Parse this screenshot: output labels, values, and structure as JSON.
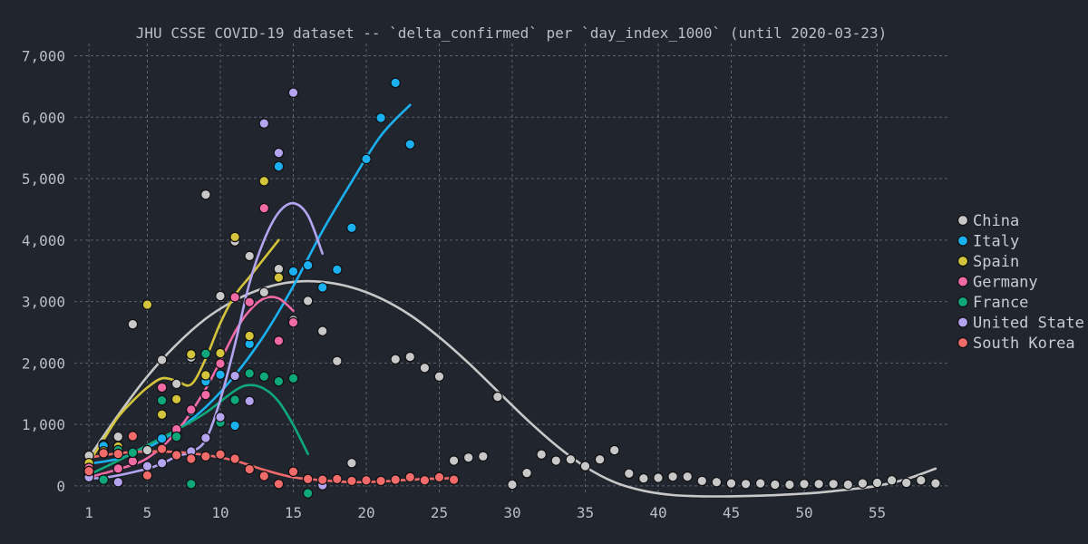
{
  "chart_data": {
    "type": "scatter",
    "title": "JHU CSSE COVID-19 dataset -- `delta_confirmed` per `day_index_1000` (until 2020-03-23)",
    "xlabel": "",
    "ylabel": "",
    "xlim": [
      0,
      60
    ],
    "ylim": [
      -150,
      7200
    ],
    "x_ticks": [
      1,
      5,
      10,
      15,
      20,
      25,
      30,
      35,
      40,
      45,
      50,
      55
    ],
    "x_tick_labels": [
      "1",
      "5",
      "10",
      "15",
      "20",
      "25",
      "30",
      "35",
      "40",
      "45",
      "50",
      "55"
    ],
    "y_ticks": [
      0,
      1000,
      2000,
      3000,
      4000,
      5000,
      6000,
      7000
    ],
    "y_tick_labels": [
      "0",
      "1,000",
      "2,000",
      "3,000",
      "4,000",
      "5,000",
      "6,000",
      "7,000"
    ],
    "grid": true,
    "legend_position": "right",
    "series": [
      {
        "name": "China",
        "color": "#c8c8c8",
        "points": [
          [
            1,
            490
          ],
          [
            2,
            670
          ],
          [
            3,
            800
          ],
          [
            4,
            2630
          ],
          [
            5,
            580
          ],
          [
            6,
            2050
          ],
          [
            7,
            1660
          ],
          [
            8,
            2090
          ],
          [
            9,
            4740
          ],
          [
            10,
            3090
          ],
          [
            11,
            3980
          ],
          [
            12,
            3740
          ],
          [
            13,
            3150
          ],
          [
            14,
            3530
          ],
          [
            15,
            2700
          ],
          [
            16,
            3010
          ],
          [
            17,
            2520
          ],
          [
            18,
            2030
          ],
          [
            19,
            370
          ],
          [
            22,
            2060
          ],
          [
            23,
            2100
          ],
          [
            24,
            1920
          ],
          [
            25,
            1780
          ],
          [
            26,
            410
          ],
          [
            27,
            460
          ],
          [
            28,
            480
          ],
          [
            29,
            1450
          ],
          [
            30,
            20
          ],
          [
            31,
            210
          ],
          [
            32,
            510
          ],
          [
            33,
            410
          ],
          [
            34,
            430
          ],
          [
            35,
            320
          ],
          [
            36,
            430
          ],
          [
            37,
            580
          ],
          [
            38,
            200
          ],
          [
            39,
            120
          ],
          [
            40,
            130
          ],
          [
            41,
            150
          ],
          [
            42,
            150
          ],
          [
            43,
            80
          ],
          [
            44,
            60
          ],
          [
            45,
            40
          ],
          [
            46,
            30
          ],
          [
            47,
            40
          ],
          [
            48,
            20
          ],
          [
            49,
            20
          ],
          [
            50,
            30
          ],
          [
            51,
            30
          ],
          [
            52,
            30
          ],
          [
            53,
            20
          ],
          [
            54,
            40
          ],
          [
            55,
            50
          ],
          [
            56,
            90
          ],
          [
            57,
            50
          ],
          [
            58,
            90
          ],
          [
            59,
            40
          ]
        ],
        "trend": [
          [
            1,
            460
          ],
          [
            3,
            1150
          ],
          [
            5,
            1780
          ],
          [
            7,
            2300
          ],
          [
            9,
            2720
          ],
          [
            11,
            3020
          ],
          [
            13,
            3220
          ],
          [
            15,
            3320
          ],
          [
            17,
            3320
          ],
          [
            19,
            3230
          ],
          [
            21,
            3050
          ],
          [
            23,
            2780
          ],
          [
            25,
            2420
          ],
          [
            27,
            2000
          ],
          [
            29,
            1540
          ],
          [
            31,
            1080
          ],
          [
            33,
            660
          ],
          [
            35,
            310
          ],
          [
            37,
            60
          ],
          [
            39,
            -80
          ],
          [
            41,
            -150
          ],
          [
            43,
            -170
          ],
          [
            45,
            -170
          ],
          [
            47,
            -160
          ],
          [
            49,
            -140
          ],
          [
            51,
            -110
          ],
          [
            53,
            -60
          ],
          [
            55,
            0
          ],
          [
            57,
            110
          ],
          [
            59,
            280
          ]
        ]
      },
      {
        "name": "Italy",
        "color": "#1bb1f0",
        "points": [
          [
            1,
            200
          ],
          [
            2,
            650
          ],
          [
            3,
            280
          ],
          [
            4,
            400
          ],
          [
            6,
            770
          ],
          [
            7,
            840
          ],
          [
            8,
            1210
          ],
          [
            9,
            1700
          ],
          [
            10,
            1810
          ],
          [
            11,
            980
          ],
          [
            12,
            2310
          ],
          [
            14,
            5200
          ],
          [
            15,
            3490
          ],
          [
            16,
            3590
          ],
          [
            17,
            3230
          ],
          [
            18,
            3520
          ],
          [
            19,
            4200
          ],
          [
            20,
            5320
          ],
          [
            21,
            5990
          ],
          [
            22,
            6560
          ],
          [
            23,
            5560
          ]
        ],
        "trend": [
          [
            1,
            360
          ],
          [
            3,
            440
          ],
          [
            5,
            620
          ],
          [
            7,
            900
          ],
          [
            9,
            1280
          ],
          [
            11,
            1800
          ],
          [
            13,
            2450
          ],
          [
            15,
            3250
          ],
          [
            17,
            4150
          ],
          [
            19,
            4950
          ],
          [
            21,
            5700
          ],
          [
            23,
            6200
          ]
        ]
      },
      {
        "name": "Spain",
        "color": "#d4c43c",
        "points": [
          [
            1,
            370
          ],
          [
            2,
            560
          ],
          [
            3,
            640
          ],
          [
            5,
            2950
          ],
          [
            6,
            1160
          ],
          [
            7,
            1410
          ],
          [
            8,
            2140
          ],
          [
            9,
            1800
          ],
          [
            10,
            2160
          ],
          [
            11,
            4050
          ],
          [
            12,
            2440
          ],
          [
            13,
            4960
          ],
          [
            14,
            3390
          ]
        ],
        "trend": [
          [
            1,
            380
          ],
          [
            2,
            750
          ],
          [
            3,
            1120
          ],
          [
            4,
            1380
          ],
          [
            5,
            1600
          ],
          [
            6,
            1750
          ],
          [
            7,
            1710
          ],
          [
            8,
            1650
          ],
          [
            9,
            2070
          ],
          [
            10,
            2650
          ],
          [
            11,
            3100
          ],
          [
            12,
            3400
          ],
          [
            13,
            3700
          ],
          [
            14,
            4000
          ]
        ]
      },
      {
        "name": "Germany",
        "color": "#f06aa6",
        "points": [
          [
            1,
            290
          ],
          [
            3,
            280
          ],
          [
            4,
            400
          ],
          [
            6,
            1600
          ],
          [
            7,
            920
          ],
          [
            8,
            1240
          ],
          [
            9,
            1480
          ],
          [
            10,
            1990
          ],
          [
            11,
            3070
          ],
          [
            12,
            2990
          ],
          [
            13,
            4520
          ],
          [
            14,
            2360
          ],
          [
            15,
            2660
          ]
        ],
        "trend": [
          [
            1,
            140
          ],
          [
            3,
            270
          ],
          [
            5,
            450
          ],
          [
            7,
            880
          ],
          [
            9,
            1580
          ],
          [
            11,
            2500
          ],
          [
            12,
            2850
          ],
          [
            13,
            3050
          ],
          [
            14,
            3050
          ],
          [
            15,
            2850
          ]
        ]
      },
      {
        "name": "France",
        "color": "#0ea87c",
        "points": [
          [
            1,
            180
          ],
          [
            2,
            100
          ],
          [
            3,
            580
          ],
          [
            4,
            540
          ],
          [
            6,
            1390
          ],
          [
            7,
            800
          ],
          [
            8,
            30
          ],
          [
            9,
            2150
          ],
          [
            10,
            1030
          ],
          [
            11,
            1400
          ],
          [
            12,
            1830
          ],
          [
            13,
            1780
          ],
          [
            14,
            1700
          ],
          [
            15,
            1750
          ],
          [
            16,
            -120
          ]
        ],
        "trend": [
          [
            1,
            180
          ],
          [
            3,
            410
          ],
          [
            5,
            660
          ],
          [
            7,
            910
          ],
          [
            9,
            1190
          ],
          [
            11,
            1550
          ],
          [
            12,
            1640
          ],
          [
            13,
            1580
          ],
          [
            14,
            1370
          ],
          [
            15,
            990
          ],
          [
            16,
            520
          ]
        ]
      },
      {
        "name": "United State",
        "color": "#b4a4f0",
        "points": [
          [
            1,
            140
          ],
          [
            3,
            60
          ],
          [
            5,
            320
          ],
          [
            6,
            370
          ],
          [
            7,
            510
          ],
          [
            8,
            560
          ],
          [
            9,
            780
          ],
          [
            10,
            1120
          ],
          [
            11,
            1790
          ],
          [
            12,
            1380
          ],
          [
            13,
            5900
          ],
          [
            14,
            5420
          ],
          [
            15,
            6400
          ],
          [
            17,
            10
          ]
        ],
        "trend": [
          [
            1,
            120
          ],
          [
            2,
            130
          ],
          [
            3,
            170
          ],
          [
            4,
            220
          ],
          [
            5,
            280
          ],
          [
            6,
            360
          ],
          [
            7,
            480
          ],
          [
            8,
            550
          ],
          [
            9,
            750
          ],
          [
            10,
            1400
          ],
          [
            11,
            2300
          ],
          [
            12,
            3300
          ],
          [
            13,
            4000
          ],
          [
            14,
            4450
          ],
          [
            15,
            4600
          ],
          [
            16,
            4400
          ],
          [
            17,
            3780
          ]
        ]
      },
      {
        "name": "South Korea",
        "color": "#f26b6b",
        "points": [
          [
            1,
            240
          ],
          [
            2,
            530
          ],
          [
            3,
            520
          ],
          [
            4,
            810
          ],
          [
            5,
            170
          ],
          [
            6,
            600
          ],
          [
            7,
            500
          ],
          [
            8,
            440
          ],
          [
            9,
            480
          ],
          [
            10,
            510
          ],
          [
            11,
            440
          ],
          [
            12,
            270
          ],
          [
            13,
            160
          ],
          [
            14,
            30
          ],
          [
            15,
            230
          ],
          [
            16,
            110
          ],
          [
            17,
            100
          ],
          [
            18,
            110
          ],
          [
            19,
            80
          ],
          [
            20,
            90
          ],
          [
            21,
            80
          ],
          [
            22,
            100
          ],
          [
            23,
            140
          ],
          [
            24,
            90
          ],
          [
            25,
            140
          ],
          [
            26,
            100
          ]
        ],
        "trend": [
          [
            1,
            460
          ],
          [
            3,
            530
          ],
          [
            5,
            560
          ],
          [
            7,
            550
          ],
          [
            9,
            500
          ],
          [
            11,
            410
          ],
          [
            13,
            260
          ],
          [
            15,
            140
          ],
          [
            17,
            90
          ],
          [
            19,
            60
          ],
          [
            21,
            70
          ],
          [
            23,
            100
          ],
          [
            25,
            120
          ],
          [
            26,
            125
          ]
        ]
      }
    ]
  }
}
